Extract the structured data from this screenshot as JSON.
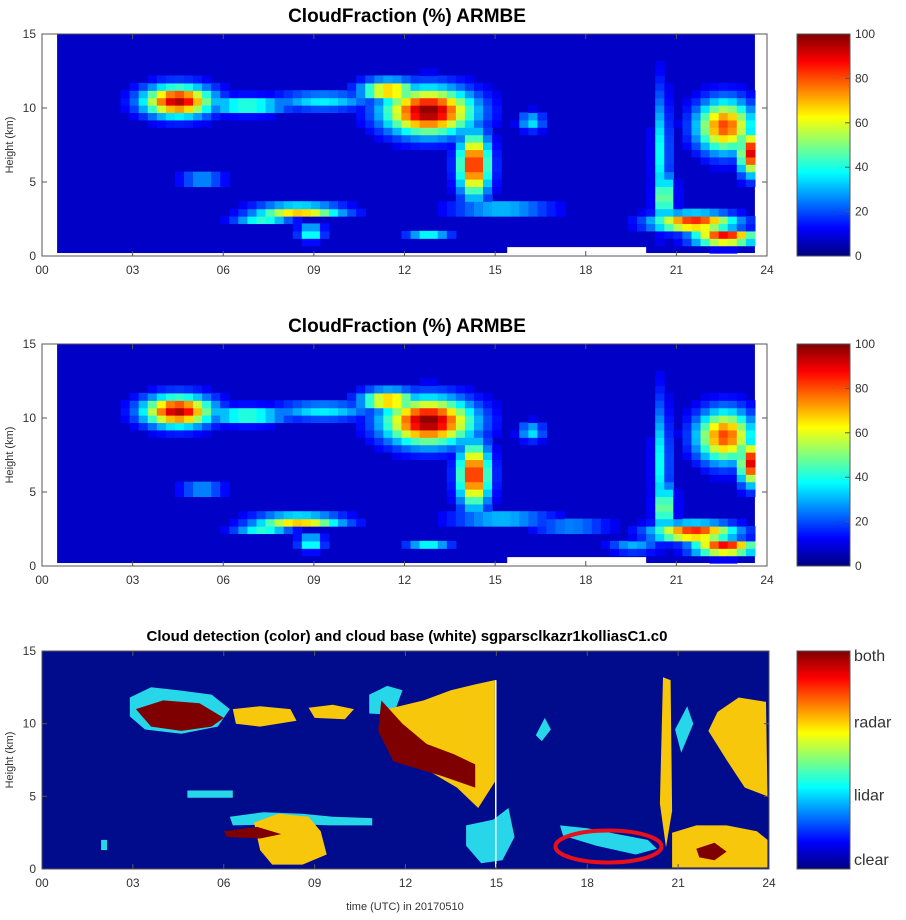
{
  "chart_data": [
    {
      "type": "heatmap",
      "title": "CloudFraction  (%) ARMBE",
      "xlabel": "",
      "ylabel": "Height (km)",
      "xlim": [
        0,
        24
      ],
      "ylim": [
        0,
        15
      ],
      "xticks": [
        "00",
        "03",
        "06",
        "09",
        "12",
        "15",
        "18",
        "21",
        "24"
      ],
      "yticks": [
        "0",
        "5",
        "10",
        "15"
      ],
      "colorbar": {
        "ticks": [
          "0",
          "20",
          "40",
          "60",
          "80",
          "100"
        ],
        "range": [
          0,
          100
        ],
        "colormap": "jet"
      },
      "features": [
        {
          "x": 4.5,
          "y": 10.5,
          "sx": 1.1,
          "sy": 1.0,
          "v": 95
        },
        {
          "x": 6.8,
          "y": 10.2,
          "sx": 1.3,
          "sy": 0.55,
          "v": 45
        },
        {
          "x": 9.3,
          "y": 10.5,
          "sx": 1.6,
          "sy": 0.6,
          "v": 32
        },
        {
          "x": 12.8,
          "y": 9.8,
          "sx": 1.4,
          "sy": 1.5,
          "v": 100
        },
        {
          "x": 14.3,
          "y": 6.2,
          "sx": 0.5,
          "sy": 2.1,
          "v": 88
        },
        {
          "x": 11.5,
          "y": 11.2,
          "sx": 0.9,
          "sy": 0.7,
          "v": 72
        },
        {
          "x": 16.2,
          "y": 9.1,
          "sx": 0.4,
          "sy": 0.6,
          "v": 32
        },
        {
          "x": 5.3,
          "y": 5.2,
          "sx": 0.7,
          "sy": 0.25,
          "v": 55
        },
        {
          "x": 8.5,
          "y": 3.1,
          "sx": 1.4,
          "sy": 0.35,
          "v": 78
        },
        {
          "x": 7.3,
          "y": 2.5,
          "sx": 0.9,
          "sy": 0.35,
          "v": 38
        },
        {
          "x": 8.9,
          "y": 1.6,
          "sx": 0.4,
          "sy": 0.5,
          "v": 42
        },
        {
          "x": 15.2,
          "y": 3.2,
          "sx": 1.6,
          "sy": 0.3,
          "v": 50
        },
        {
          "x": 12.8,
          "y": 1.4,
          "sx": 0.7,
          "sy": 0.25,
          "v": 35
        },
        {
          "x": 20.5,
          "y": 7.0,
          "sx": 0.25,
          "sy": 4.2,
          "v": 35
        },
        {
          "x": 22.6,
          "y": 8.8,
          "sx": 0.9,
          "sy": 1.7,
          "v": 80
        },
        {
          "x": 23.4,
          "y": 7.0,
          "sx": 0.3,
          "sy": 1.4,
          "v": 92
        },
        {
          "x": 21.6,
          "y": 2.3,
          "sx": 1.3,
          "sy": 0.6,
          "v": 88
        },
        {
          "x": 22.6,
          "y": 1.3,
          "sx": 1.0,
          "sy": 0.5,
          "v": 95
        },
        {
          "x": 20.6,
          "y": 4.0,
          "sx": 0.3,
          "sy": 1.6,
          "v": 55
        }
      ]
    },
    {
      "type": "heatmap",
      "title": "CloudFraction  (%) ARMBE",
      "xlabel": "",
      "ylabel": "Height (km)",
      "xlim": [
        0,
        24
      ],
      "ylim": [
        0,
        15
      ],
      "xticks": [
        "00",
        "03",
        "06",
        "09",
        "12",
        "15",
        "18",
        "21",
        "24"
      ],
      "yticks": [
        "0",
        "5",
        "10",
        "15"
      ],
      "colorbar": {
        "ticks": [
          "0",
          "20",
          "40",
          "60",
          "80",
          "100"
        ],
        "range": [
          0,
          100
        ],
        "colormap": "jet"
      },
      "features": [
        {
          "x": 4.5,
          "y": 10.5,
          "sx": 1.1,
          "sy": 1.0,
          "v": 95
        },
        {
          "x": 6.8,
          "y": 10.2,
          "sx": 1.3,
          "sy": 0.55,
          "v": 45
        },
        {
          "x": 9.3,
          "y": 10.5,
          "sx": 1.6,
          "sy": 0.6,
          "v": 32
        },
        {
          "x": 12.8,
          "y": 9.8,
          "sx": 1.4,
          "sy": 1.5,
          "v": 100
        },
        {
          "x": 14.3,
          "y": 6.2,
          "sx": 0.5,
          "sy": 2.1,
          "v": 88
        },
        {
          "x": 11.5,
          "y": 11.2,
          "sx": 0.9,
          "sy": 0.7,
          "v": 72
        },
        {
          "x": 16.2,
          "y": 9.1,
          "sx": 0.4,
          "sy": 0.6,
          "v": 32
        },
        {
          "x": 5.3,
          "y": 5.2,
          "sx": 0.7,
          "sy": 0.25,
          "v": 55
        },
        {
          "x": 8.5,
          "y": 3.1,
          "sx": 1.4,
          "sy": 0.35,
          "v": 78
        },
        {
          "x": 7.3,
          "y": 2.5,
          "sx": 0.9,
          "sy": 0.35,
          "v": 38
        },
        {
          "x": 8.9,
          "y": 1.6,
          "sx": 0.4,
          "sy": 0.5,
          "v": 42
        },
        {
          "x": 15.2,
          "y": 3.2,
          "sx": 1.6,
          "sy": 0.3,
          "v": 50
        },
        {
          "x": 17.5,
          "y": 2.7,
          "sx": 1.2,
          "sy": 0.3,
          "v": 38
        },
        {
          "x": 12.8,
          "y": 1.4,
          "sx": 0.7,
          "sy": 0.25,
          "v": 35
        },
        {
          "x": 20.5,
          "y": 7.0,
          "sx": 0.25,
          "sy": 4.2,
          "v": 35
        },
        {
          "x": 22.6,
          "y": 8.8,
          "sx": 0.9,
          "sy": 1.7,
          "v": 80
        },
        {
          "x": 23.4,
          "y": 7.0,
          "sx": 0.3,
          "sy": 1.4,
          "v": 92
        },
        {
          "x": 21.6,
          "y": 2.3,
          "sx": 1.3,
          "sy": 0.6,
          "v": 88
        },
        {
          "x": 22.6,
          "y": 1.3,
          "sx": 1.0,
          "sy": 0.5,
          "v": 95
        },
        {
          "x": 20.6,
          "y": 4.0,
          "sx": 0.3,
          "sy": 1.6,
          "v": 55
        },
        {
          "x": 19.6,
          "y": 1.3,
          "sx": 0.8,
          "sy": 0.35,
          "v": 30
        }
      ]
    },
    {
      "type": "heatmap",
      "title": "Cloud detection (color) and cloud base (white) sgparsclkazr1kolliasC1.c0",
      "xlabel": "time (UTC) in 20170510",
      "ylabel": "Height (km)",
      "xlim": [
        0,
        24
      ],
      "ylim": [
        0,
        15
      ],
      "xticks": [
        "00",
        "03",
        "06",
        "09",
        "12",
        "15",
        "18",
        "21",
        "24"
      ],
      "yticks": [
        "0",
        "5",
        "10",
        "15"
      ],
      "colorbar": {
        "ticks": [
          "clear",
          "lidar",
          "radar",
          "both"
        ],
        "colormap": "jet"
      },
      "categories": [
        "clear",
        "lidar",
        "radar",
        "both"
      ],
      "regions": [
        {
          "c": "lidar",
          "pts": [
            [
              2.9,
              11.8
            ],
            [
              3.6,
              12.5
            ],
            [
              4.5,
              12.3
            ],
            [
              5.6,
              12.0
            ],
            [
              6.2,
              11.0
            ],
            [
              5.8,
              9.8
            ],
            [
              4.6,
              9.3
            ],
            [
              3.4,
              9.6
            ],
            [
              2.9,
              10.5
            ]
          ]
        },
        {
          "c": "both",
          "pts": [
            [
              3.1,
              11.0
            ],
            [
              4.0,
              11.6
            ],
            [
              5.2,
              11.4
            ],
            [
              6.0,
              10.4
            ],
            [
              5.6,
              9.8
            ],
            [
              4.6,
              9.5
            ],
            [
              3.6,
              9.8
            ]
          ]
        },
        {
          "c": "radar",
          "pts": [
            [
              6.3,
              11.0
            ],
            [
              7.2,
              11.2
            ],
            [
              8.2,
              11.0
            ],
            [
              8.4,
              10.2
            ],
            [
              7.2,
              9.8
            ],
            [
              6.4,
              10.0
            ]
          ]
        },
        {
          "c": "radar",
          "pts": [
            [
              8.8,
              11.1
            ],
            [
              9.6,
              11.3
            ],
            [
              10.3,
              11.0
            ],
            [
              10.0,
              10.3
            ],
            [
              9.0,
              10.4
            ]
          ]
        },
        {
          "c": "lidar",
          "pts": [
            [
              10.8,
              12.0
            ],
            [
              11.4,
              12.6
            ],
            [
              11.9,
              12.3
            ],
            [
              11.6,
              10.6
            ],
            [
              10.8,
              10.7
            ]
          ]
        },
        {
          "c": "radar",
          "pts": [
            [
              11.4,
              11.0
            ],
            [
              12.6,
              11.6
            ],
            [
              13.5,
              12.3
            ],
            [
              14.3,
              12.7
            ],
            [
              14.95,
              13.0
            ],
            [
              14.95,
              6.0
            ],
            [
              14.4,
              4.2
            ],
            [
              13.7,
              5.6
            ],
            [
              12.4,
              7.2
            ],
            [
              11.6,
              9.0
            ]
          ]
        },
        {
          "c": "both",
          "pts": [
            [
              11.2,
              11.6
            ],
            [
              11.9,
              10.0
            ],
            [
              12.7,
              8.6
            ],
            [
              13.6,
              7.9
            ],
            [
              14.3,
              7.2
            ],
            [
              14.3,
              5.6
            ],
            [
              13.2,
              6.4
            ],
            [
              11.6,
              7.4
            ],
            [
              11.1,
              9.5
            ]
          ]
        },
        {
          "c": "radar",
          "pts": [
            [
              20.5,
              13.2
            ],
            [
              20.75,
              13.0
            ],
            [
              20.8,
              4.0
            ],
            [
              20.6,
              1.5
            ],
            [
              20.4,
              4.5
            ]
          ]
        },
        {
          "c": "lidar",
          "pts": [
            [
              20.9,
              9.6
            ],
            [
              21.3,
              11.2
            ],
            [
              21.5,
              10.0
            ],
            [
              21.1,
              8.0
            ]
          ]
        },
        {
          "c": "radar",
          "pts": [
            [
              22.3,
              10.8
            ],
            [
              23.0,
              11.8
            ],
            [
              23.9,
              11.5
            ],
            [
              23.95,
              5.0
            ],
            [
              23.2,
              5.6
            ],
            [
              22.6,
              7.5
            ],
            [
              22.0,
              9.5
            ]
          ]
        },
        {
          "c": "radar",
          "pts": [
            [
              20.8,
              2.5
            ],
            [
              21.6,
              3.0
            ],
            [
              22.6,
              3.0
            ],
            [
              23.6,
              2.6
            ],
            [
              23.95,
              2.0
            ],
            [
              23.95,
              0.1
            ],
            [
              20.8,
              0.1
            ]
          ]
        },
        {
          "c": "both",
          "pts": [
            [
              21.6,
              1.4
            ],
            [
              22.2,
              1.8
            ],
            [
              22.6,
              1.2
            ],
            [
              22.2,
              0.6
            ],
            [
              21.7,
              0.8
            ]
          ]
        },
        {
          "c": "lidar",
          "pts": [
            [
              6.2,
              3.6
            ],
            [
              7.3,
              3.9
            ],
            [
              8.6,
              3.8
            ],
            [
              9.6,
              3.6
            ],
            [
              10.9,
              3.5
            ],
            [
              10.9,
              3.0
            ],
            [
              9.5,
              3.0
            ],
            [
              8.2,
              3.1
            ],
            [
              6.3,
              3.0
            ]
          ]
        },
        {
          "c": "radar",
          "pts": [
            [
              7.0,
              3.2
            ],
            [
              7.8,
              3.8
            ],
            [
              8.8,
              3.6
            ],
            [
              9.2,
              2.6
            ],
            [
              9.4,
              1.0
            ],
            [
              8.6,
              0.3
            ],
            [
              7.6,
              0.3
            ],
            [
              7.2,
              1.3
            ]
          ]
        },
        {
          "c": "both",
          "pts": [
            [
              6.0,
              2.6
            ],
            [
              7.1,
              2.9
            ],
            [
              7.9,
              2.4
            ],
            [
              7.2,
              2.1
            ],
            [
              6.1,
              2.2
            ]
          ]
        },
        {
          "c": "lidar",
          "pts": [
            [
              4.8,
              5.4
            ],
            [
              6.3,
              5.4
            ],
            [
              6.3,
              4.9
            ],
            [
              4.8,
              4.9
            ]
          ]
        },
        {
          "c": "lidar",
          "pts": [
            [
              14.0,
              3.0
            ],
            [
              14.9,
              3.4
            ],
            [
              15.4,
              4.2
            ],
            [
              15.6,
              2.2
            ],
            [
              15.2,
              0.6
            ],
            [
              14.5,
              0.4
            ],
            [
              14.0,
              1.6
            ]
          ]
        },
        {
          "c": "lidar",
          "pts": [
            [
              16.3,
              9.2
            ],
            [
              16.6,
              10.4
            ],
            [
              16.8,
              9.6
            ],
            [
              16.5,
              8.8
            ]
          ]
        },
        {
          "c": "lidar",
          "pts": [
            [
              17.1,
              3.0
            ],
            [
              18.0,
              2.8
            ],
            [
              19.0,
              2.4
            ],
            [
              20.0,
              2.0
            ],
            [
              20.3,
              1.4
            ],
            [
              19.6,
              1.0
            ],
            [
              18.3,
              1.6
            ],
            [
              17.2,
              2.3
            ]
          ]
        },
        {
          "c": "lidar",
          "pts": [
            [
              1.95,
              2.0
            ],
            [
              2.15,
              2.0
            ],
            [
              2.15,
              1.3
            ],
            [
              1.95,
              1.3
            ]
          ]
        }
      ],
      "annotation": {
        "shape": "ellipse",
        "color": "#e8101a",
        "cx": 18.7,
        "cy": 1.55,
        "rx": 1.75,
        "ry": 1.1
      }
    }
  ]
}
